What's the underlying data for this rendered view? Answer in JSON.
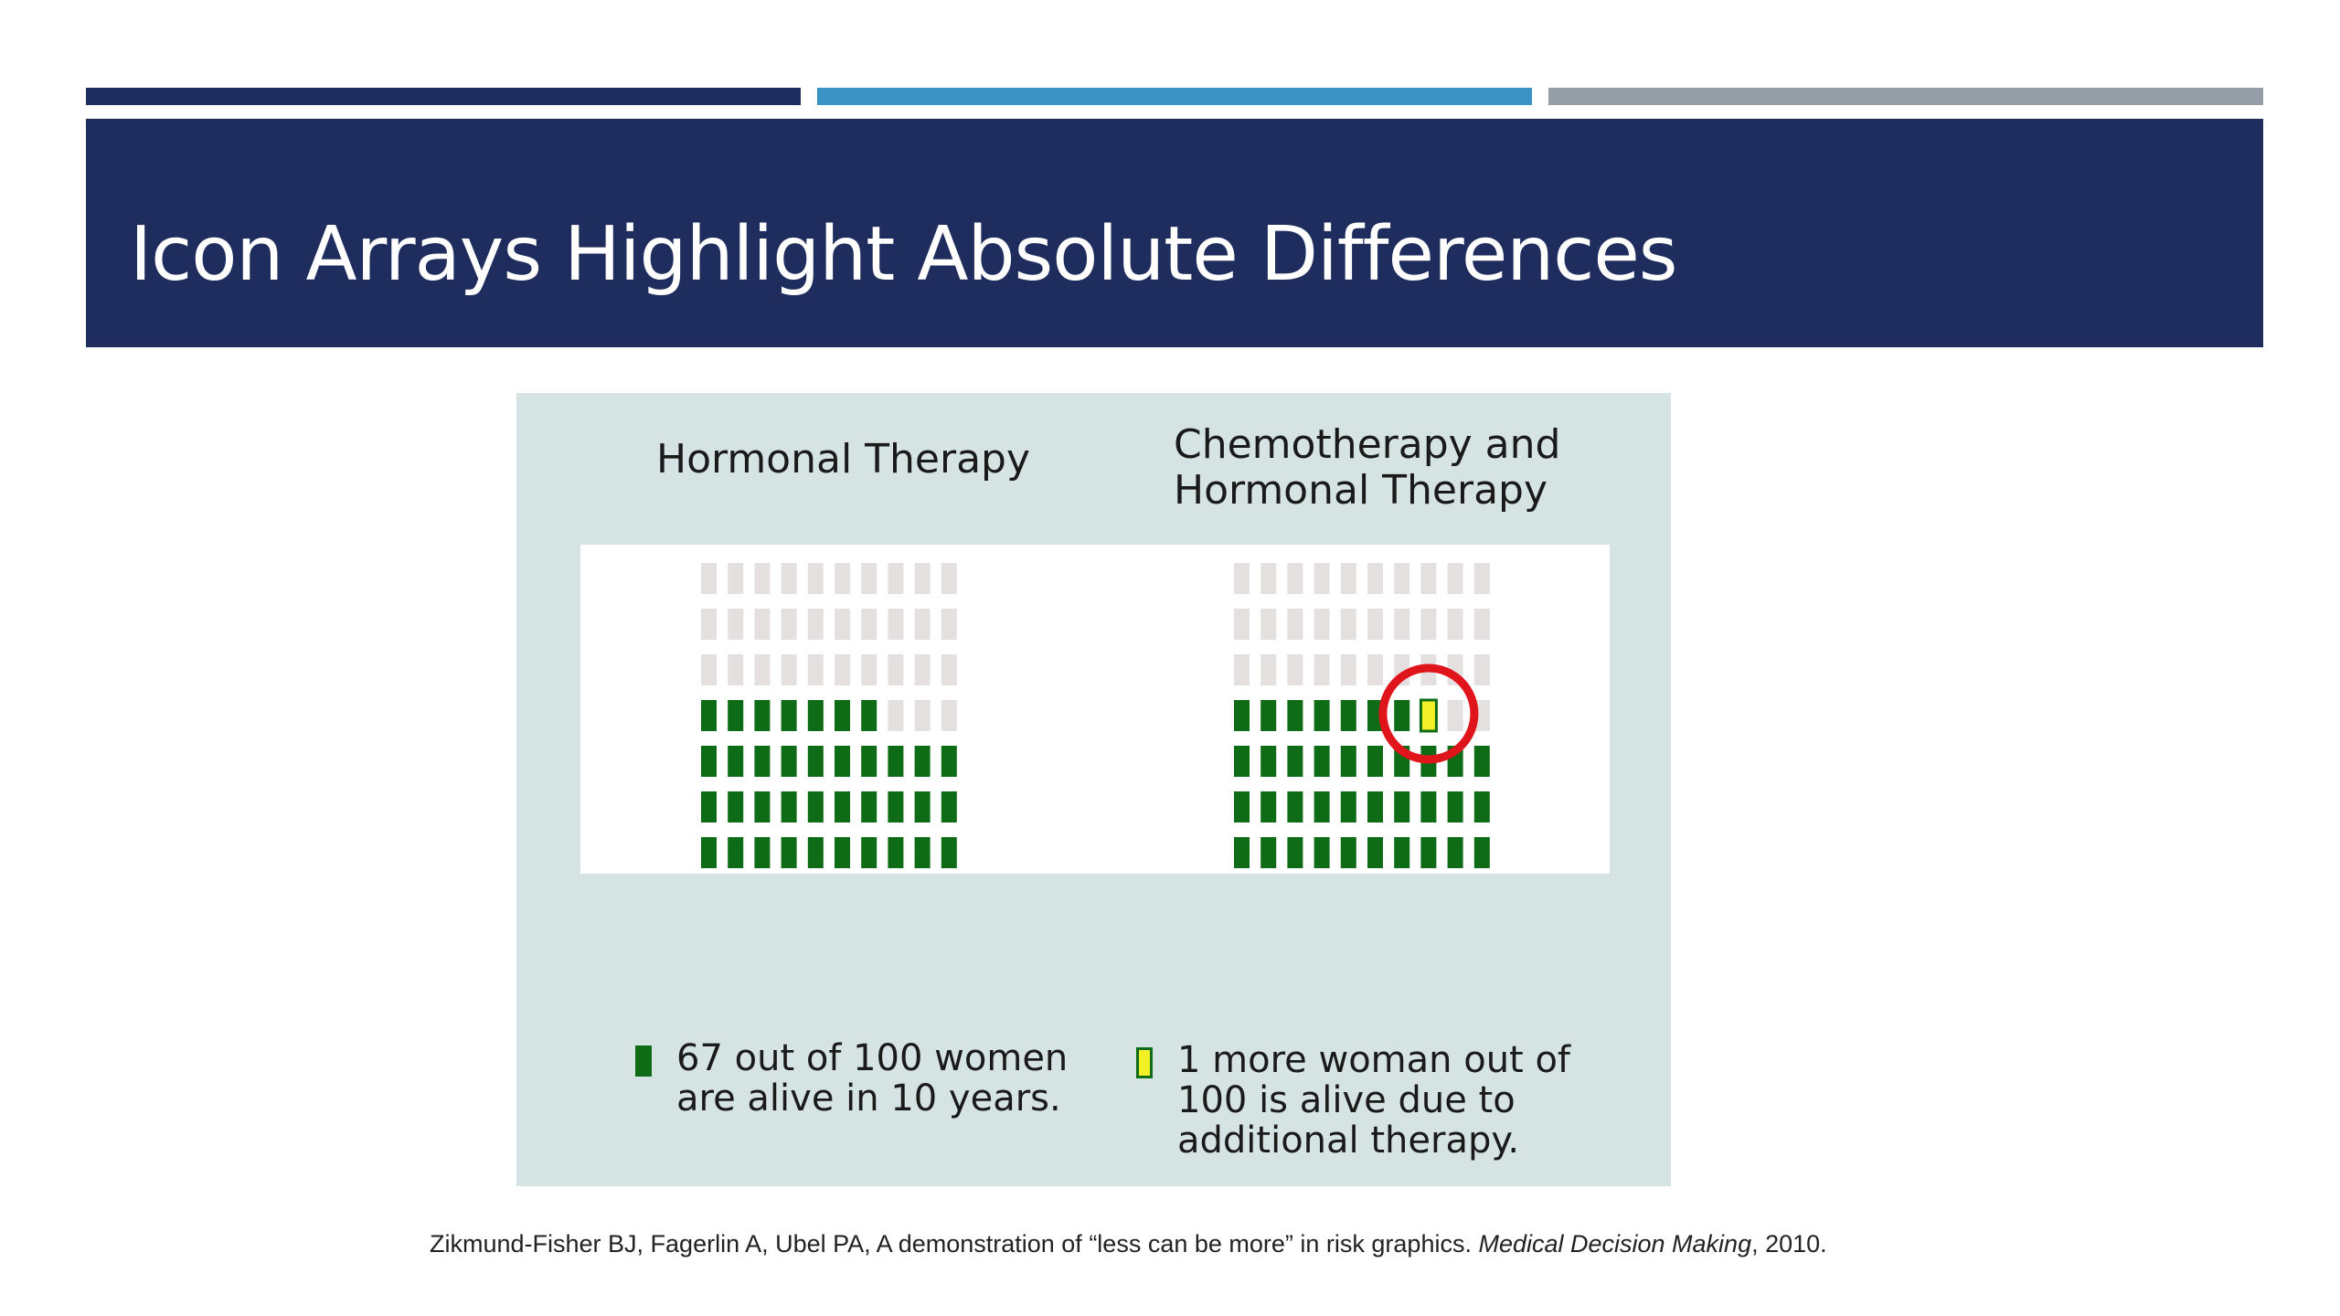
{
  "slide": {
    "title": "Icon Arrays Highlight Absolute Differences",
    "citation": {
      "authors_and_title": "Zikmund-Fisher BJ, Fagerlin A, Ubel PA, A demonstration of “less can be more” in risk graphics. ",
      "journal": "Medical Decision Making",
      "year": ", 2010."
    }
  },
  "colors": {
    "accent_dark": "#1e2d5e",
    "accent_blue": "#3b93c5",
    "accent_gray": "#959da6",
    "alive": "#0e6b16",
    "not_alive": "#e4e0e0",
    "additional": "#f3f028",
    "highlight_circle": "#e0141b"
  },
  "chart_data": {
    "type": "icon-array",
    "panels": [
      {
        "title_lines": [
          "Hormonal Therapy"
        ],
        "total": 100,
        "alive": 67,
        "additional": 0,
        "grid": [
          10,
          10
        ],
        "highlight_additional": false
      },
      {
        "title_lines": [
          "Chemotherapy and",
          "Hormonal Therapy"
        ],
        "total": 100,
        "alive": 67,
        "additional": 1,
        "grid": [
          10,
          10
        ],
        "highlight_additional": true
      }
    ],
    "legend": [
      {
        "icon": "green-person-icon",
        "lines": [
          "67 out of 100 women",
          "are alive in 10 years."
        ]
      },
      {
        "icon": "yellow-person-icon",
        "lines": [
          "1 more woman out of",
          "100 is alive due to",
          "additional therapy."
        ]
      }
    ]
  }
}
